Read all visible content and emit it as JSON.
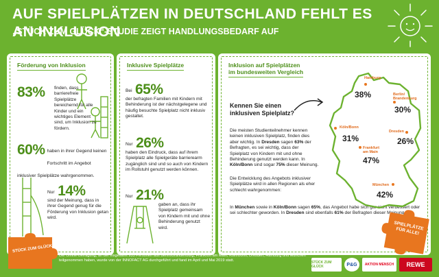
{
  "header": {
    "title": "Auf Spielplätzen in Deutschland fehlt es an Inklusion",
    "subtitle": "„Stück zum Glück“-Studie zeigt Handlungsbedarf auf"
  },
  "card1": {
    "title": "Förderung von Inklusion",
    "stat1": {
      "value": "83%",
      "text": "finden, dass barriere­freie Spielplätze bereichernd für alle Kinder und ein wichtiges Element sind, um Inklusion zu fördern."
    },
    "stat2": {
      "value": "60%",
      "text": "haben in ihrer Gegend keinen Fortschritt im Angebot inklusiver Spielplätze wahrgenommen."
    },
    "stat3": {
      "prefix": "Nur",
      "value": "14%",
      "text": "sind der Meinung, dass in ihrer Gegend genug für die Förde­rung von Inklusion getan wird."
    }
  },
  "card2": {
    "title": "Inklusive Spielplätze",
    "stat1": {
      "prefix": "Bei",
      "value": "65%",
      "text": "der befragten Familien mit Kindern mit Behinde­rung ist der nächstgelegene und häufig besuchte Spielplatz nicht inklusiv gestaltet."
    },
    "stat2": {
      "prefix": "Nur",
      "value": "26%",
      "text": "haben den Ein­druck, dass auf ihrem Spielplatz alle Spielgeräte barrierearm zugänglich sind und so auch von Kindern im Rollstuhl genutzt werden können."
    },
    "stat3": {
      "prefix": "Nur",
      "value": "21%",
      "text": "gaben an, dass ihr Spielplatz gemeinsam von Kindern mit und ohne Behinderung genutzt wird."
    }
  },
  "card3": {
    "title_line1": "Inklusion auf Spielplätzen",
    "title_line2": "im bundesweiten Vergleich",
    "question": "Kennen Sie einen inklusiven Spielplatz?",
    "para1_a": "Die meisten Studienteilnehmer kennen keinen inklusiven Spielplatz, finden dies aber wichtig. In ",
    "para1_b": "Dresden",
    "para1_c": " sagen ",
    "para1_d": "63%",
    "para1_e": " der Befragten, es sei wichtig, dass der Spielplatz von Kindern mit und ohne Behinderung genutzt werden kann. In ",
    "para1_f": "Köln/Bonn",
    "para1_g": " sind sogar ",
    "para1_h": "75%",
    "para1_i": " dieser Meinung.",
    "para2": "Die Entwicklung des Angebots inklusiver Spielplätze wird in allen Regionen als eher schlecht wahrgenommen:",
    "para3_a": "In ",
    "para3_b": "München",
    "para3_c": " sowie in ",
    "para3_d": "Köln/Bonn",
    "para3_e": " sagen ",
    "para3_f": "65%",
    "para3_g": ", das Angebot habe sich gar nicht verbessert oder sei schlechter geworden. In ",
    "para3_h": "Dresden",
    "para3_i": " sind ebenfalls ",
    "para3_j": "61%",
    "para3_k": " der Befragten dieser Meinung.",
    "cities": [
      {
        "name": "Hamburg",
        "value": "38%"
      },
      {
        "name": "Berlin/ Brandenburg",
        "value": "30%"
      },
      {
        "name": "Köln/Bonn",
        "value": "31%"
      },
      {
        "name": "Dresden",
        "value": "26%"
      },
      {
        "name": "Frankfurt am Main",
        "value": "47%"
      },
      {
        "name": "München",
        "value": "42%"
      }
    ]
  },
  "footer": {
    "text": "Die Online-Befragung, an der insgesamt 933 Personen aus Berlin/Brandenburg, Frankfurt am Main, Köln/Bonn, Dresden, Hamburg und München teilgenommen haben, wurde von der INNOFACT AG durchgeführt und fand im April und Mai 2019 statt."
  },
  "puzzle_left": {
    "text": "STÜCK ZUM GLÜCK"
  },
  "puzzle_right": {
    "line1": "SPIELPLÄTZE",
    "line2": "FÜR ALLE!"
  },
  "logos": {
    "stueck": "STÜCK ZUM GLÜCK",
    "pg": "P&G",
    "aktion": "AKTION MENSCH",
    "rewe": "REWE"
  },
  "colors": {
    "green": "#6cb22f",
    "dark_green": "#4d8f1a",
    "orange": "#e8761f",
    "rewe_red": "#cc071e"
  }
}
